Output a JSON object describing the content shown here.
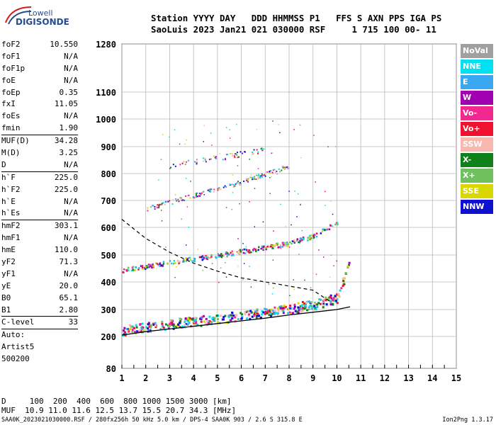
{
  "logo": {
    "line1": "Lowell",
    "line2": "DIGISONDE"
  },
  "header": {
    "line1": "Station YYYY DAY   DDD HHMMSS P1   FFS S AXN PPS IGA PS",
    "line2": "SaoLuis 2023 Jan21 021 030000 RSF     1 715 100 00- 11"
  },
  "params": [
    {
      "label": "foF2",
      "value": "10.550"
    },
    {
      "label": "foF1",
      "value": "N/A"
    },
    {
      "label": "foF1p",
      "value": "N/A"
    },
    {
      "label": "foE",
      "value": "N/A"
    },
    {
      "label": "foEp",
      "value": "0.35"
    },
    {
      "label": "fxI",
      "value": "11.05"
    },
    {
      "label": "foEs",
      "value": "N/A"
    },
    {
      "label": "fmin",
      "value": "1.90"
    },
    {
      "label": "MUF(D)",
      "value": "34.28",
      "sep": true
    },
    {
      "label": "M(D)",
      "value": "3.25"
    },
    {
      "label": "D",
      "value": "N/A"
    },
    {
      "label": "h`F",
      "value": "225.0",
      "sep": true
    },
    {
      "label": "h`F2",
      "value": "225.0"
    },
    {
      "label": "h`E",
      "value": "N/A"
    },
    {
      "label": "h`Es",
      "value": "N/A"
    },
    {
      "label": "hmF2",
      "value": "303.1",
      "sep": true
    },
    {
      "label": "hmF1",
      "value": "N/A"
    },
    {
      "label": "hmE",
      "value": "110.0"
    },
    {
      "label": "yF2",
      "value": "71.3"
    },
    {
      "label": "yF1",
      "value": "N/A"
    },
    {
      "label": "yE",
      "value": "20.0"
    },
    {
      "label": "B0",
      "value": "65.1"
    },
    {
      "label": "B1",
      "value": "2.80"
    },
    {
      "label": "C-level",
      "value": "33",
      "sep": true
    },
    {
      "label": "Auto:",
      "value": "",
      "sep": true
    },
    {
      "label": "Artist5",
      "value": ""
    },
    {
      "label": "500200",
      "value": ""
    }
  ],
  "legend": [
    {
      "label": "NoVal",
      "color": "#a0a0a0"
    },
    {
      "label": "NNE",
      "color": "#00e0f0"
    },
    {
      "label": "E",
      "color": "#3aa8f0"
    },
    {
      "label": "W",
      "color": "#a000b0"
    },
    {
      "label": "Vo-",
      "color": "#f02890"
    },
    {
      "label": "Vo+",
      "color": "#f01030"
    },
    {
      "label": "SSW",
      "color": "#f8b8b0"
    },
    {
      "label": "X-",
      "color": "#10801a"
    },
    {
      "label": "X+",
      "color": "#70c060"
    },
    {
      "label": "SSE",
      "color": "#d8d800"
    },
    {
      "label": "NNW",
      "color": "#1010d0"
    }
  ],
  "footer": {
    "d_row": "D     100  200  400  600  800 1000 1500 3000 [km]",
    "muf_row": "MUF  10.9 11.0 11.6 12.5 13.7 15.5 20.7 34.3 [MHz]",
    "file_info": "SAA0K_2023021030000.RSF / 280fx256h 50 kHz 5.0 km / DPS-4 SAA0K 903 / 2.6 S 315.8 E",
    "version": "Ion2Png 1.3.17"
  },
  "chart_data": {
    "type": "scatter",
    "x_ticks": [
      1,
      2,
      3,
      4,
      5,
      6,
      7,
      8,
      9,
      10,
      11,
      12,
      13,
      14,
      15
    ],
    "y_ticks": [
      80,
      200,
      300,
      400,
      500,
      600,
      700,
      800,
      900,
      1000,
      1100,
      1280
    ],
    "xlim": [
      1,
      15
    ],
    "ylim": [
      80,
      1280
    ],
    "grid": true,
    "traces": [
      {
        "name": "F2 O-trace profile",
        "x": [
          1.0,
          2.0,
          3.0,
          4.0,
          5.0,
          6.0,
          7.0,
          8.0,
          9.0,
          10.0,
          10.55
        ],
        "y": [
          205,
          218,
          228,
          238,
          248,
          258,
          268,
          280,
          290,
          300,
          310
        ]
      },
      {
        "name": "echo band 1",
        "x": [
          1.0,
          2.0,
          3.0,
          4.0,
          5.0,
          6.0,
          7.0,
          8.0,
          9.0,
          10.0,
          10.5
        ],
        "y": [
          225,
          238,
          248,
          258,
          268,
          280,
          292,
          305,
          320,
          345,
          470
        ]
      },
      {
        "name": "echo band 2",
        "x": [
          1.0,
          2.0,
          3.0,
          4.0,
          5.0,
          6.0,
          7.0,
          8.0,
          9.0,
          10.0
        ],
        "y": [
          445,
          460,
          475,
          488,
          500,
          515,
          530,
          545,
          570,
          620
        ]
      },
      {
        "name": "echo band 3",
        "x": [
          2.0,
          3.0,
          4.0,
          5.0,
          6.0,
          7.0,
          8.0
        ],
        "y": [
          670,
          695,
          720,
          745,
          770,
          800,
          830
        ]
      },
      {
        "name": "echo band 4",
        "x": [
          3.0,
          4.0,
          5.0,
          6.0,
          7.0
        ],
        "y": [
          830,
          845,
          860,
          875,
          890
        ]
      },
      {
        "name": "dashed curve",
        "x": [
          1.0,
          2.0,
          3.0,
          4.0,
          5.0,
          6.0,
          7.0,
          8.0,
          9.0,
          9.7
        ],
        "y": [
          630,
          560,
          510,
          470,
          440,
          415,
          400,
          385,
          370,
          330
        ]
      }
    ]
  }
}
